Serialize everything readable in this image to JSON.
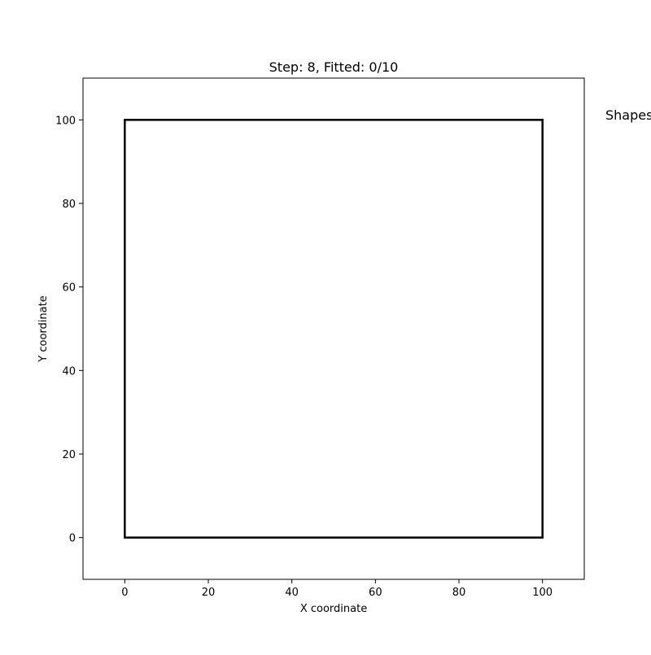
{
  "game": {
    "title": "Step: 8, Fitted: 0/10",
    "side_panel_label": "Shapes",
    "step": 8,
    "fitted": 0,
    "total_shapes": 10
  },
  "chart_data": {
    "type": "scatter",
    "title": "Step: 8, Fitted: 0/10",
    "xlabel": "X coordinate",
    "ylabel": "Y coordinate",
    "xlim": [
      -10,
      110
    ],
    "ylim": [
      -10,
      110
    ],
    "xticks": [
      0,
      20,
      40,
      60,
      80,
      100
    ],
    "yticks": [
      0,
      20,
      40,
      60,
      80,
      100
    ],
    "xtick_labels": [
      "0",
      "20",
      "40",
      "60",
      "80",
      "100"
    ],
    "ytick_labels": [
      "0",
      "20",
      "40",
      "60",
      "80",
      "100"
    ],
    "grid": false,
    "container": {
      "shape": "rectangle",
      "x_range": [
        0,
        100
      ],
      "y_range": [
        0,
        100
      ],
      "edge_color": "#000000"
    },
    "placed_shapes": []
  }
}
